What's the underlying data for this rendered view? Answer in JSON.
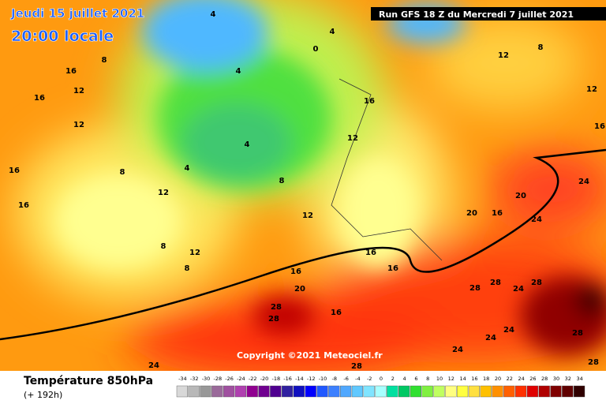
{
  "header": {
    "date": "Jeudi 15 juillet 2021",
    "time": "20:00 locale",
    "run": "Run GFS 18 Z du Mercredi 7 juillet 2021"
  },
  "copyright": "Copyright ©2021 Meteociel.fr",
  "footer": {
    "title": "Température 850hPa",
    "lead": "(+ 192h)"
  },
  "legend": {
    "values": [
      -34,
      -32,
      -30,
      -28,
      -26,
      -24,
      -22,
      -20,
      -18,
      -16,
      -14,
      -12,
      -10,
      -8,
      -6,
      -4,
      -2,
      0,
      2,
      4,
      6,
      8,
      10,
      12,
      14,
      16,
      18,
      20,
      22,
      24,
      26,
      28,
      30,
      32,
      34
    ],
    "colors": [
      "#d8d8d8",
      "#b8b8b8",
      "#989898",
      "#9a6a9a",
      "#a050a0",
      "#b040b0",
      "#900090",
      "#700090",
      "#500090",
      "#3020a0",
      "#1010c0",
      "#0000ff",
      "#2058ff",
      "#3c80ff",
      "#50a8ff",
      "#60c8ff",
      "#80e4ff",
      "#a8ffff",
      "#00e0a0",
      "#00c864",
      "#30e030",
      "#80f040",
      "#c0ff60",
      "#ffff80",
      "#ffff40",
      "#ffe040",
      "#ffc000",
      "#ff9000",
      "#ff6000",
      "#ff3000",
      "#e00000",
      "#b00000",
      "#800000",
      "#600000",
      "#300000"
    ]
  },
  "contour_labels": [
    8,
    16,
    16,
    12,
    12,
    16,
    16,
    8,
    12,
    8,
    12,
    8,
    4,
    4,
    4,
    8,
    12,
    12,
    16,
    12,
    12,
    16,
    24,
    20,
    16,
    20,
    24,
    16,
    16,
    16,
    20,
    28,
    28,
    16,
    28,
    28,
    24,
    28,
    24,
    24,
    28,
    28,
    24,
    28,
    24,
    4,
    4,
    0,
    8
  ]
}
